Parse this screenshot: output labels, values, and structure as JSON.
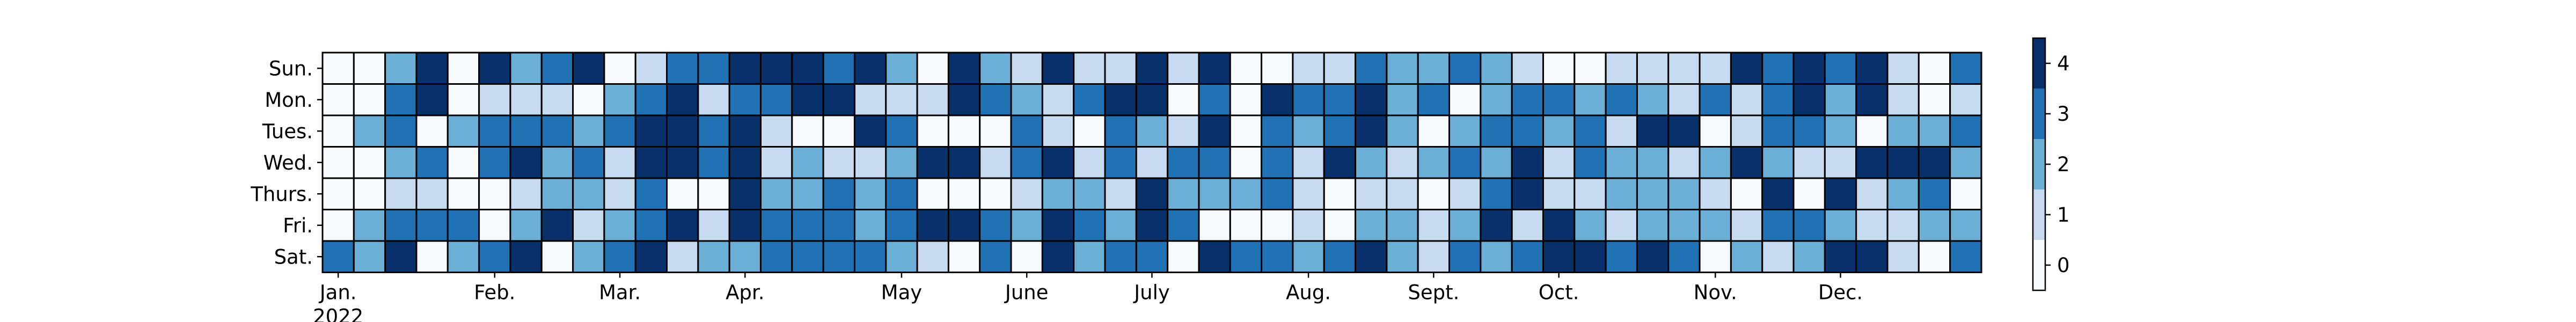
{
  "chart_data": {
    "type": "heatmap",
    "title": "",
    "xlabel": "",
    "ylabel": "",
    "row_labels": [
      "Sun.",
      "Mon.",
      "Tues.",
      "Wed.",
      "Thurs.",
      "Fri.",
      "Sat."
    ],
    "month_labels": [
      {
        "label": "Jan.",
        "week": 0
      },
      {
        "label": "Feb.",
        "week": 5
      },
      {
        "label": "Mar.",
        "week": 9
      },
      {
        "label": "Apr.",
        "week": 13
      },
      {
        "label": "May",
        "week": 18
      },
      {
        "label": "June",
        "week": 22
      },
      {
        "label": "July",
        "week": 26
      },
      {
        "label": "Aug.",
        "week": 31
      },
      {
        "label": "Sept.",
        "week": 35
      },
      {
        "label": "Oct.",
        "week": 39
      },
      {
        "label": "Nov.",
        "week": 44
      },
      {
        "label": "Dec.",
        "week": 48
      }
    ],
    "year_label": "2022",
    "weeks": 53,
    "colorbar": {
      "ticks": [
        0,
        1,
        2,
        3,
        4
      ],
      "range": [
        -0.5,
        4.5
      ],
      "levels": 5,
      "colors": [
        "#f7fbff",
        "#c6dbef",
        "#6baed6",
        "#2171b5",
        "#08306b"
      ]
    },
    "grid": true,
    "values": [
      [
        0,
        0,
        2,
        4,
        0,
        4,
        2,
        3,
        4,
        0,
        1,
        3,
        3,
        4,
        4,
        4,
        3,
        4,
        2,
        0,
        4,
        2,
        1,
        4,
        1,
        1,
        4,
        1,
        4,
        0,
        0,
        1,
        1,
        3,
        2,
        2,
        3,
        2,
        1,
        0,
        0,
        1,
        1,
        1,
        1,
        4,
        3,
        4,
        3,
        4,
        1,
        0,
        3
      ],
      [
        0,
        0,
        3,
        4,
        0,
        1,
        1,
        1,
        0,
        2,
        3,
        4,
        1,
        3,
        3,
        4,
        4,
        1,
        1,
        1,
        4,
        3,
        2,
        1,
        3,
        4,
        4,
        0,
        3,
        0,
        4,
        3,
        3,
        4,
        2,
        3,
        0,
        2,
        3,
        3,
        2,
        3,
        2,
        1,
        3,
        1,
        3,
        4,
        2,
        4,
        1,
        0,
        1
      ],
      [
        0,
        2,
        3,
        0,
        2,
        3,
        3,
        3,
        2,
        3,
        4,
        4,
        3,
        4,
        1,
        0,
        0,
        4,
        3,
        0,
        0,
        0,
        3,
        1,
        0,
        3,
        2,
        1,
        4,
        0,
        3,
        2,
        3,
        4,
        2,
        0,
        2,
        3,
        3,
        2,
        3,
        1,
        4,
        4,
        0,
        1,
        3,
        3,
        2,
        0,
        2,
        2,
        3
      ],
      [
        0,
        0,
        2,
        3,
        0,
        3,
        4,
        2,
        3,
        1,
        4,
        4,
        3,
        4,
        1,
        2,
        1,
        1,
        2,
        4,
        4,
        1,
        3,
        4,
        1,
        3,
        1,
        3,
        3,
        0,
        3,
        1,
        4,
        2,
        1,
        2,
        3,
        2,
        4,
        1,
        3,
        2,
        2,
        1,
        2,
        4,
        2,
        1,
        1,
        4,
        4,
        4,
        2
      ],
      [
        0,
        0,
        1,
        1,
        0,
        0,
        1,
        2,
        2,
        1,
        3,
        0,
        0,
        4,
        2,
        2,
        3,
        2,
        3,
        0,
        0,
        0,
        1,
        2,
        2,
        1,
        4,
        2,
        2,
        2,
        3,
        1,
        0,
        1,
        1,
        0,
        1,
        3,
        4,
        1,
        1,
        2,
        2,
        2,
        1,
        0,
        4,
        0,
        4,
        1,
        2,
        3,
        0
      ],
      [
        0,
        2,
        3,
        3,
        3,
        0,
        2,
        4,
        1,
        2,
        3,
        4,
        1,
        4,
        3,
        3,
        3,
        2,
        3,
        4,
        4,
        3,
        2,
        4,
        3,
        2,
        4,
        3,
        0,
        0,
        0,
        1,
        0,
        2,
        2,
        1,
        2,
        4,
        1,
        4,
        2,
        1,
        2,
        2,
        2,
        1,
        3,
        3,
        2,
        1,
        1,
        2,
        2
      ],
      [
        3,
        2,
        4,
        0,
        2,
        3,
        4,
        0,
        2,
        3,
        4,
        1,
        2,
        2,
        3,
        3,
        3,
        3,
        2,
        1,
        0,
        3,
        0,
        4,
        2,
        3,
        3,
        0,
        4,
        3,
        3,
        2,
        3,
        4,
        2,
        1,
        3,
        2,
        3,
        4,
        4,
        3,
        4,
        3,
        0,
        2,
        1,
        2,
        4,
        4,
        1,
        0,
        3
      ]
    ]
  }
}
